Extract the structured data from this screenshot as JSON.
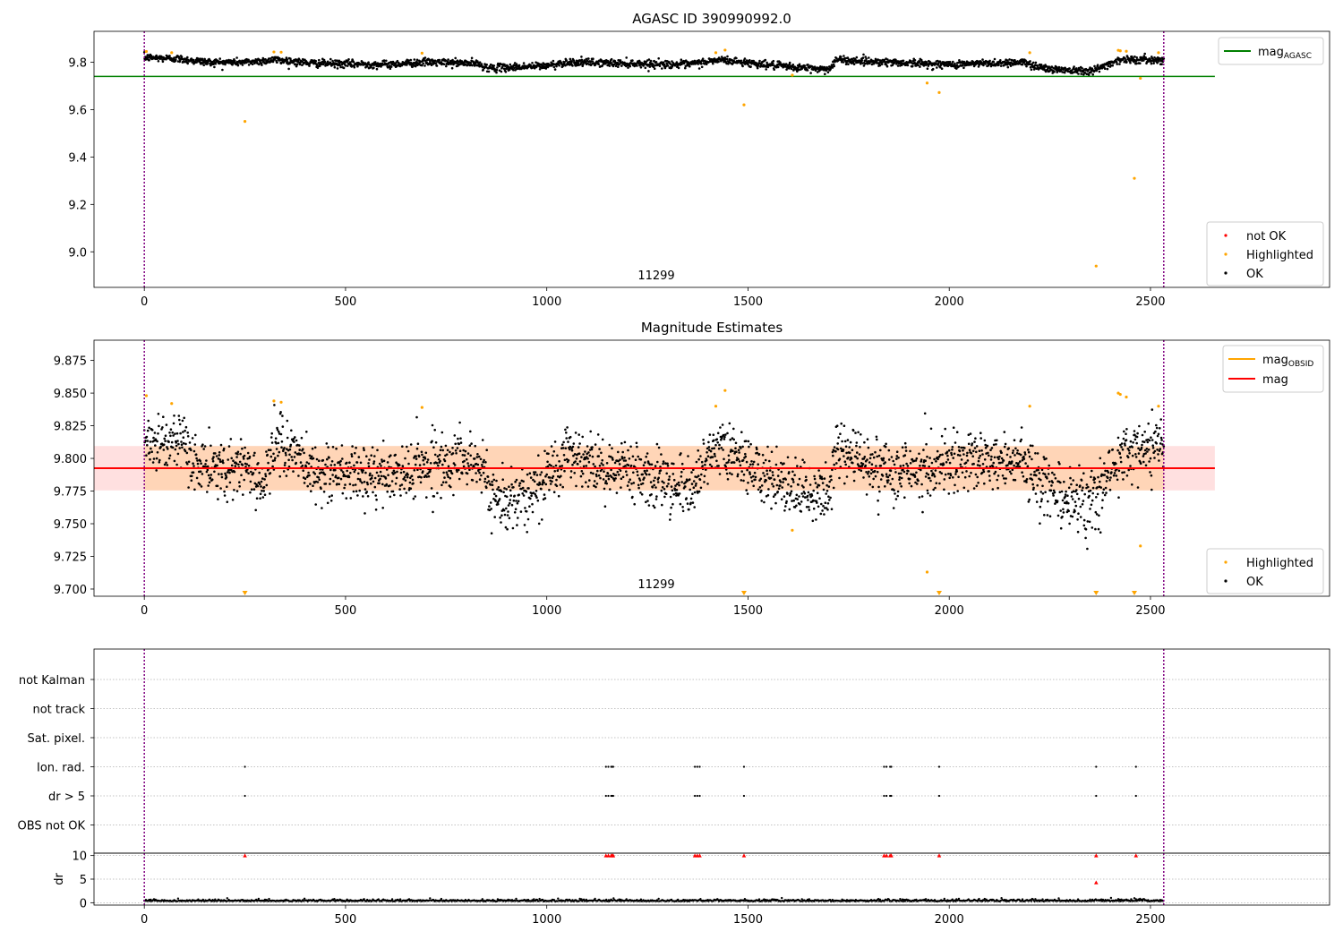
{
  "chart_data": [
    {
      "type": "scatter",
      "title": "AGASC ID 390990992.0",
      "obsid_label": "11299",
      "xlim": [
        -125,
        2945
      ],
      "ylim": [
        8.85,
        9.93
      ],
      "xticks": [
        0,
        500,
        1000,
        1500,
        2000,
        2500
      ],
      "yticks": [
        9.0,
        9.2,
        9.4,
        9.6,
        9.8
      ],
      "ytick_labels": [
        "9.0",
        "9.2",
        "9.4",
        "9.6",
        "9.8"
      ],
      "grid": false,
      "vlines": [
        0,
        2533
      ],
      "hlines": [
        {
          "name": "mag_AGASC",
          "y": 9.74,
          "x": [
            -125,
            2660
          ],
          "color": "#008000"
        }
      ],
      "legend_upper": {
        "placement": "upper-right",
        "entries": [
          {
            "label": "mag",
            "sub": "AGASC",
            "color": "#008000",
            "kind": "line"
          }
        ]
      },
      "legend_lower": {
        "placement": "lower-right",
        "entries": [
          {
            "label": "not OK",
            "color": "#ff0000",
            "kind": "dot"
          },
          {
            "label": "Highlighted",
            "color": "#ffa500",
            "kind": "dot"
          },
          {
            "label": "OK",
            "color": "#000000",
            "kind": "dot"
          }
        ]
      },
      "series": [
        {
          "name": "OK",
          "color": "#000000",
          "trend": [
            [
              0,
              9.82
            ],
            [
              80,
              9.815
            ],
            [
              160,
              9.8
            ],
            [
              250,
              9.8
            ],
            [
              330,
              9.81
            ],
            [
              420,
              9.795
            ],
            [
              600,
              9.79
            ],
            [
              700,
              9.8
            ],
            [
              820,
              9.795
            ],
            [
              860,
              9.775
            ],
            [
              1000,
              9.785
            ],
            [
              1050,
              9.8
            ],
            [
              1200,
              9.795
            ],
            [
              1350,
              9.79
            ],
            [
              1430,
              9.81
            ],
            [
              1600,
              9.78
            ],
            [
              1700,
              9.77
            ],
            [
              1720,
              9.81
            ],
            [
              1850,
              9.8
            ],
            [
              2000,
              9.79
            ],
            [
              2180,
              9.8
            ],
            [
              2250,
              9.77
            ],
            [
              2360,
              9.765
            ],
            [
              2420,
              9.81
            ],
            [
              2533,
              9.81
            ]
          ],
          "spread": 0.008
        },
        {
          "name": "Highlighted",
          "color": "#ffa500",
          "points": [
            [
              5,
              9.845
            ],
            [
              68,
              9.84
            ],
            [
              250,
              9.55
            ],
            [
              322,
              9.843
            ],
            [
              340,
              9.842
            ],
            [
              690,
              9.838
            ],
            [
              1420,
              9.84
            ],
            [
              1443,
              9.851
            ],
            [
              1490,
              9.62
            ],
            [
              1610,
              9.745
            ],
            [
              1945,
              9.712
            ],
            [
              1975,
              9.672
            ],
            [
              2200,
              9.84
            ],
            [
              2365,
              8.94
            ],
            [
              2420,
              9.85
            ],
            [
              2425,
              9.848
            ],
            [
              2440,
              9.846
            ],
            [
              2460,
              9.31
            ],
            [
              2475,
              9.732
            ],
            [
              2520,
              9.84
            ]
          ]
        }
      ]
    },
    {
      "type": "scatter",
      "title": "Magnitude Estimates",
      "obsid_label": "11299",
      "xlim": [
        -125,
        2945
      ],
      "ylim": [
        9.6945,
        9.8905
      ],
      "xticks": [
        0,
        500,
        1000,
        1500,
        2000,
        2500
      ],
      "yticks": [
        9.7,
        9.725,
        9.75,
        9.775,
        9.8,
        9.825,
        9.85,
        9.875
      ],
      "ytick_labels": [
        "9.700",
        "9.725",
        "9.750",
        "9.775",
        "9.800",
        "9.825",
        "9.850",
        "9.875"
      ],
      "grid": false,
      "vlines": [
        0,
        2533
      ],
      "mag": {
        "y": 9.7925,
        "band": [
          9.7755,
          9.8095
        ],
        "x": [
          -125,
          2660
        ],
        "color": "#ff0000"
      },
      "mag_obsid": {
        "y": 9.7925,
        "band": [
          9.7755,
          9.8095
        ],
        "x": [
          0,
          2533
        ],
        "color": "#ffa500"
      },
      "legend_upper": {
        "placement": "upper-right",
        "entries": [
          {
            "label": "mag",
            "sub": "OBSID",
            "color": "#ffa500",
            "kind": "line"
          },
          {
            "label": "mag",
            "sub": "",
            "color": "#ff0000",
            "kind": "line"
          }
        ]
      },
      "legend_lower": {
        "placement": "lower-right",
        "entries": [
          {
            "label": "Highlighted",
            "color": "#ffa500",
            "kind": "dot"
          },
          {
            "label": "OK",
            "color": "#000000",
            "kind": "dot"
          }
        ]
      },
      "series": [
        {
          "name": "OK",
          "color": "#000000",
          "trend": [
            [
              0,
              9.815
            ],
            [
              80,
              9.81
            ],
            [
              160,
              9.79
            ],
            [
              250,
              9.795
            ],
            [
              300,
              9.78
            ],
            [
              330,
              9.815
            ],
            [
              420,
              9.79
            ],
            [
              600,
              9.785
            ],
            [
              700,
              9.795
            ],
            [
              820,
              9.8
            ],
            [
              860,
              9.775
            ],
            [
              900,
              9.765
            ],
            [
              1000,
              9.785
            ],
            [
              1050,
              9.805
            ],
            [
              1150,
              9.79
            ],
            [
              1200,
              9.795
            ],
            [
              1280,
              9.785
            ],
            [
              1350,
              9.775
            ],
            [
              1430,
              9.81
            ],
            [
              1500,
              9.795
            ],
            [
              1600,
              9.775
            ],
            [
              1700,
              9.77
            ],
            [
              1720,
              9.81
            ],
            [
              1850,
              9.79
            ],
            [
              2000,
              9.795
            ],
            [
              2180,
              9.8
            ],
            [
              2250,
              9.775
            ],
            [
              2360,
              9.765
            ],
            [
              2420,
              9.805
            ],
            [
              2533,
              9.81
            ]
          ],
          "spread": 0.011
        },
        {
          "name": "Highlighted",
          "color": "#ffa500",
          "points": [
            [
              5,
              9.848
            ],
            [
              68,
              9.842
            ],
            [
              322,
              9.844
            ],
            [
              340,
              9.843
            ],
            [
              690,
              9.839
            ],
            [
              1420,
              9.84
            ],
            [
              1443,
              9.852
            ],
            [
              1610,
              9.745
            ],
            [
              1945,
              9.713
            ],
            [
              2200,
              9.84
            ],
            [
              2420,
              9.85
            ],
            [
              2425,
              9.849
            ],
            [
              2440,
              9.847
            ],
            [
              2475,
              9.733
            ],
            [
              2520,
              9.84
            ]
          ]
        },
        {
          "name": "Highlighted (off-scale)",
          "color": "#ffa500",
          "marker": "triangle-down",
          "points": [
            [
              250,
              9.6945
            ],
            [
              1490,
              9.6945
            ],
            [
              1975,
              9.6945
            ],
            [
              2365,
              9.6945
            ],
            [
              2460,
              9.6945
            ]
          ]
        }
      ]
    },
    {
      "type": "scatter",
      "title": "",
      "xlim": [
        -125,
        2945
      ],
      "categories": [
        "not Kalman",
        "not track",
        "Sat. pixel.",
        "Ion. rad.",
        "dr > 5",
        "OBS not OK"
      ],
      "grid": "dotted",
      "vlines": [
        0,
        2533
      ],
      "flags": [
        {
          "category": "Ion. rad.",
          "x": [
            250,
            1147,
            1153,
            1160,
            1163,
            1165,
            1368,
            1374,
            1380,
            1490,
            1838,
            1844,
            1853,
            1856,
            1975,
            2365,
            2464
          ]
        },
        {
          "category": "dr > 5",
          "x": [
            250,
            1147,
            1153,
            1160,
            1163,
            1165,
            1368,
            1374,
            1380,
            1490,
            1838,
            1844,
            1853,
            1856,
            1975,
            2365,
            2464
          ]
        }
      ]
    },
    {
      "type": "scatter",
      "title": "",
      "ylabel": "dr",
      "xlim": [
        -125,
        2945
      ],
      "ylim": [
        -0.5,
        10.5
      ],
      "xticks": [
        0,
        500,
        1000,
        1500,
        2000,
        2500
      ],
      "yticks": [
        0,
        5,
        10
      ],
      "ytick_labels": [
        "0",
        "5",
        "10"
      ],
      "grid": "dotted",
      "vlines": [
        0,
        2533
      ],
      "series": [
        {
          "name": "dr",
          "color": "#000000",
          "baseline": 0.3,
          "spread": 0.35
        },
        {
          "name": "dr (capped)",
          "color": "#ff0000",
          "marker": "triangle-up",
          "points": [
            [
              250,
              10
            ],
            [
              1147,
              10
            ],
            [
              1153,
              10
            ],
            [
              1160,
              10
            ],
            [
              1163,
              10
            ],
            [
              1165,
              10
            ],
            [
              1368,
              10
            ],
            [
              1374,
              10
            ],
            [
              1380,
              10
            ],
            [
              1490,
              10
            ],
            [
              1838,
              10
            ],
            [
              1844,
              10
            ],
            [
              1853,
              10
            ],
            [
              1856,
              10
            ],
            [
              1975,
              10
            ],
            [
              2365,
              10
            ],
            [
              2464,
              10
            ],
            [
              2365,
              4.3
            ]
          ]
        }
      ]
    }
  ]
}
